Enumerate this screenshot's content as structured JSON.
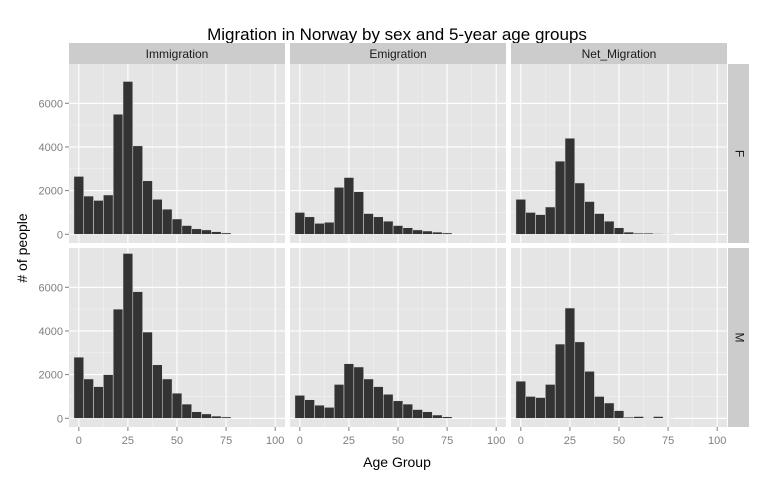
{
  "chart_data": {
    "type": "bar",
    "title": "Migration in Norway by sex and 5-year age groups",
    "xlabel": "Age Group",
    "ylabel": "# of people",
    "xlim": [
      -5,
      105
    ],
    "ylim": [
      -400,
      7800
    ],
    "x_ticks": [
      0,
      25,
      50,
      75,
      100
    ],
    "y_ticks": [
      0,
      2000,
      4000,
      6000
    ],
    "grid": true,
    "bar_color": "#333333",
    "panel_bg": "#e5e5e5",
    "strip_bg": "#cccccc",
    "columns": [
      "Immigration",
      "Emigration",
      "Net_Migration"
    ],
    "rows": [
      "F",
      "M"
    ],
    "x": [
      0,
      5,
      10,
      15,
      20,
      25,
      30,
      35,
      40,
      45,
      50,
      55,
      60,
      65,
      70,
      75
    ],
    "series": {
      "F": {
        "Immigration": [
          2650,
          1750,
          1550,
          1800,
          5500,
          7000,
          4050,
          2450,
          1600,
          1150,
          700,
          400,
          250,
          200,
          120,
          60
        ],
        "Emigration": [
          1000,
          800,
          500,
          550,
          2150,
          2600,
          1950,
          950,
          800,
          600,
          400,
          300,
          200,
          150,
          100,
          60
        ],
        "Net_Migration": [
          1600,
          1000,
          900,
          1250,
          3350,
          4400,
          2350,
          1500,
          950,
          600,
          300,
          100,
          50,
          50,
          30,
          20
        ]
      },
      "M": {
        "Immigration": [
          2800,
          1800,
          1450,
          2000,
          5000,
          7550,
          5800,
          3950,
          2450,
          1800,
          1150,
          650,
          300,
          200,
          100,
          60
        ],
        "Emigration": [
          1050,
          850,
          600,
          500,
          1550,
          2500,
          2350,
          1800,
          1450,
          1100,
          800,
          650,
          400,
          300,
          150,
          70
        ],
        "Net_Migration": [
          1700,
          1000,
          950,
          1550,
          3400,
          5050,
          3500,
          2150,
          1000,
          700,
          350,
          50,
          80,
          20,
          80,
          10
        ]
      }
    }
  }
}
